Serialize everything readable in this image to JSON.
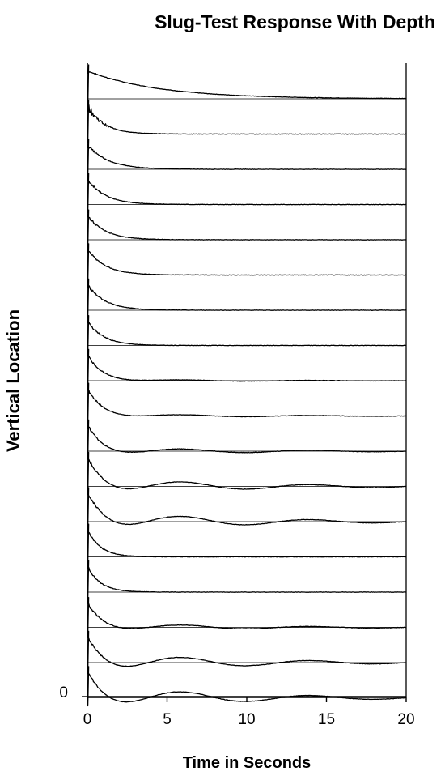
{
  "chart_data": {
    "type": "line",
    "title": "Slug-Test Response With Depth",
    "xlabel": "Time in Seconds",
    "ylabel": "Vertical Location",
    "xlim": [
      0,
      20
    ],
    "xticks": [
      0,
      5,
      10,
      15,
      20
    ],
    "yticks": [
      0
    ],
    "grid": "horizontal baselines per trace",
    "legend": "none",
    "series_order": "top to bottom",
    "series": [
      {
        "peak": 1.0,
        "tau": 4.5,
        "osc": 0.0,
        "period": 8,
        "noise": 0.06,
        "spikeMag": 1.0
      },
      {
        "peak": 1.0,
        "tau": 1.0,
        "osc": 0.0,
        "period": 8,
        "noise": 0.2,
        "spikeMag": 1.5
      },
      {
        "peak": 0.85,
        "tau": 1.3,
        "osc": 0.0,
        "period": 8,
        "noise": 0.12,
        "spikeMag": 1.0
      },
      {
        "peak": 0.9,
        "tau": 1.1,
        "osc": 0.0,
        "period": 8,
        "noise": 0.12,
        "spikeMag": 1.0
      },
      {
        "peak": 0.85,
        "tau": 1.1,
        "osc": 0.0,
        "period": 8,
        "noise": 0.12,
        "spikeMag": 1.0
      },
      {
        "peak": 0.9,
        "tau": 1.1,
        "osc": 0.0,
        "period": 8,
        "noise": 0.12,
        "spikeMag": 1.0
      },
      {
        "peak": 0.9,
        "tau": 1.1,
        "osc": 0.0,
        "period": 8,
        "noise": 0.12,
        "spikeMag": 1.0
      },
      {
        "peak": 0.85,
        "tau": 1.0,
        "osc": 0.0,
        "period": 8,
        "noise": 0.12,
        "spikeMag": 1.0
      },
      {
        "peak": 0.9,
        "tau": 1.0,
        "osc": 0.05,
        "period": 8,
        "noise": 0.1,
        "spikeMag": 1.0
      },
      {
        "peak": 0.95,
        "tau": 1.0,
        "osc": 0.08,
        "period": 8,
        "noise": 0.12,
        "spikeMag": 1.0
      },
      {
        "peak": 0.9,
        "tau": 1.0,
        "osc": 0.15,
        "period": 8,
        "noise": 0.12,
        "spikeMag": 1.0
      },
      {
        "peak": 1.0,
        "tau": 1.2,
        "osc": 0.3,
        "period": 8,
        "noise": 0.12,
        "spikeMag": 1.0
      },
      {
        "peak": 1.0,
        "tau": 1.3,
        "osc": 0.35,
        "period": 8,
        "noise": 0.12,
        "spikeMag": 1.0
      },
      {
        "peak": 0.95,
        "tau": 0.8,
        "osc": 0.0,
        "period": 8,
        "noise": 0.1,
        "spikeMag": 1.0
      },
      {
        "peak": 0.9,
        "tau": 0.8,
        "osc": 0.0,
        "period": 8,
        "noise": 0.1,
        "spikeMag": 1.0
      },
      {
        "peak": 0.85,
        "tau": 1.0,
        "osc": 0.15,
        "period": 8,
        "noise": 0.12,
        "spikeMag": 1.0
      },
      {
        "peak": 0.9,
        "tau": 1.2,
        "osc": 0.35,
        "period": 8,
        "noise": 0.12,
        "spikeMag": 1.0
      },
      {
        "peak": 0.9,
        "tau": 1.3,
        "osc": 0.4,
        "period": 8,
        "noise": 0.12,
        "spikeMag": 1.0
      }
    ]
  }
}
